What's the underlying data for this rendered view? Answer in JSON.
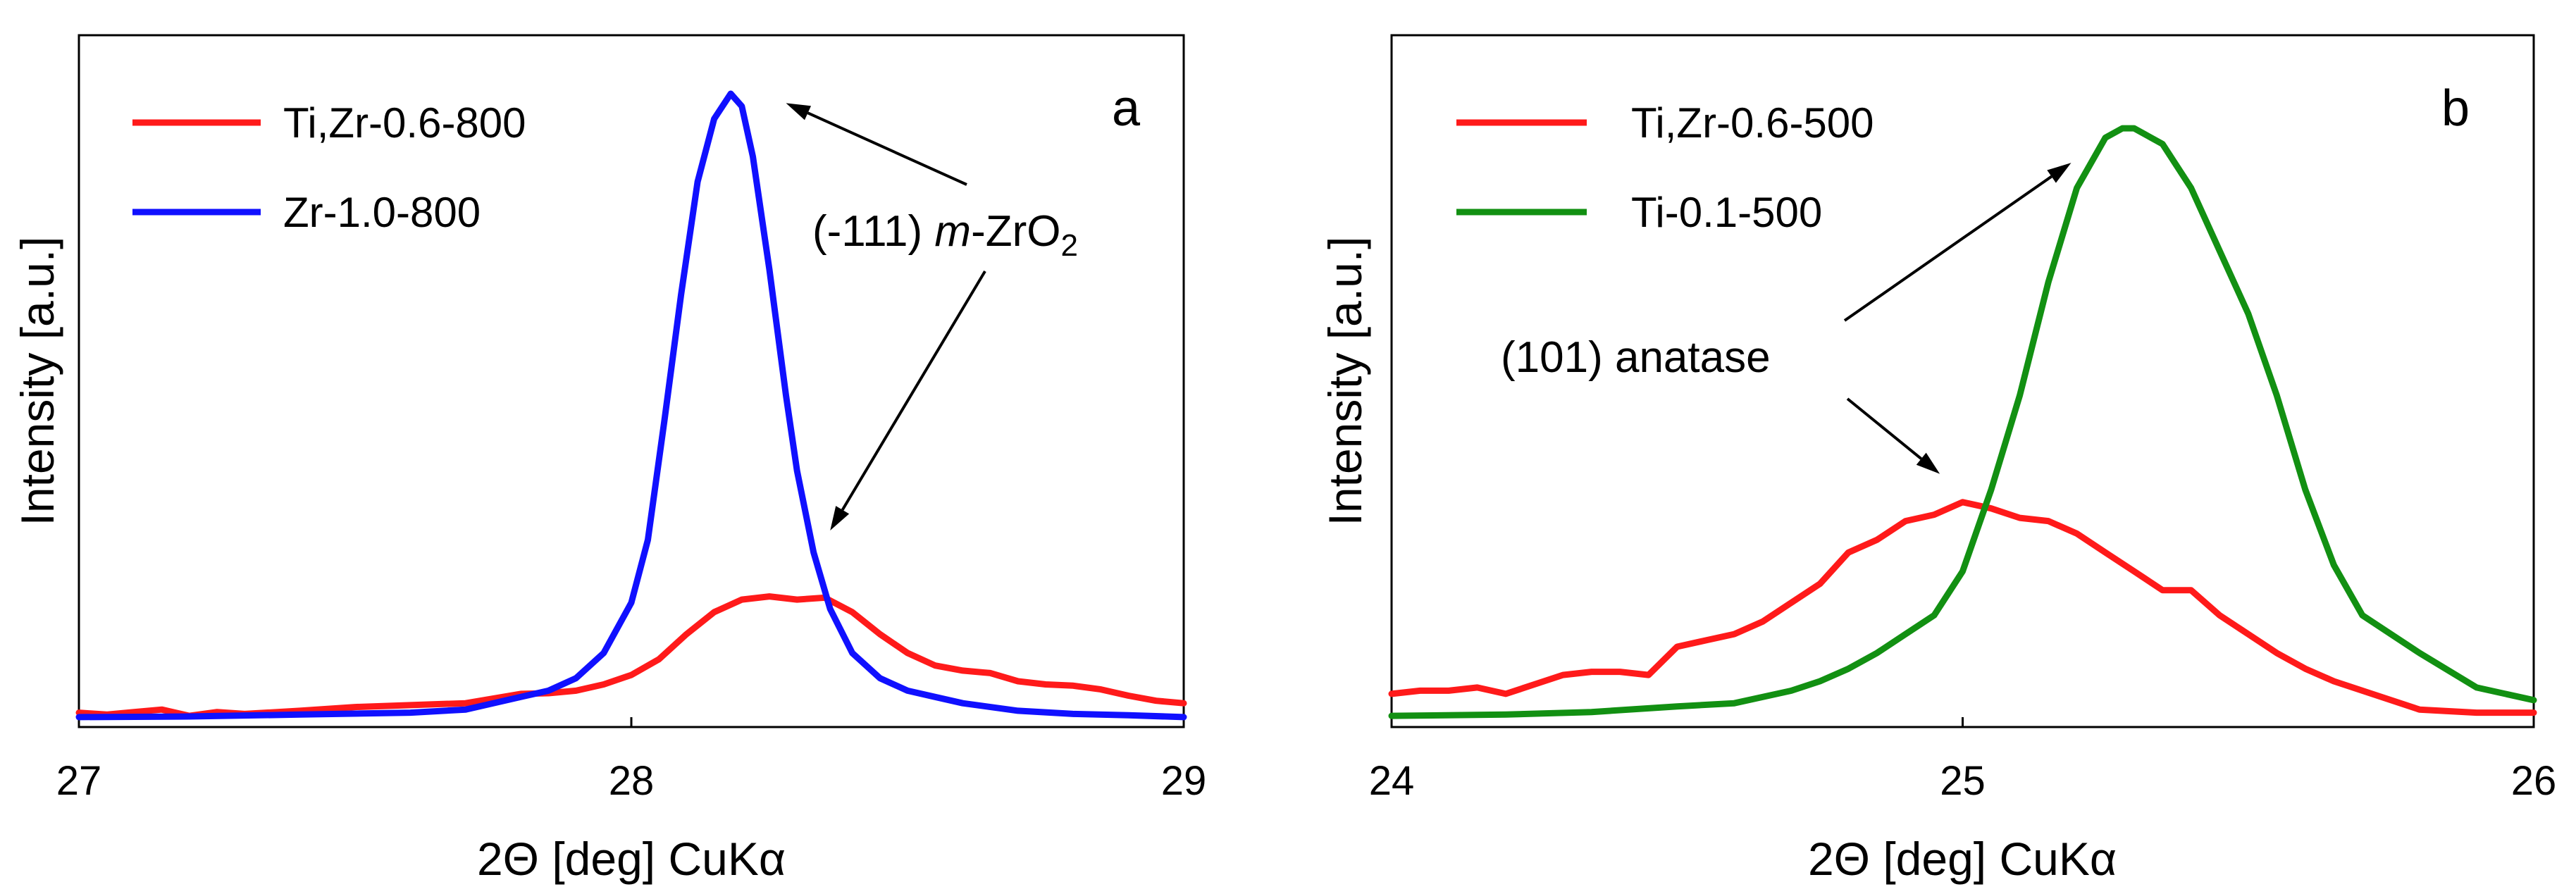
{
  "chart_data": [
    {
      "type": "line",
      "panel_label": "a",
      "xlabel": "2Θ [deg] CuKα",
      "ylabel": "Intensity [a.u.]",
      "xlim": [
        27,
        29
      ],
      "ylim": [
        0,
        100
      ],
      "xticks": [
        "27",
        "28",
        "29"
      ],
      "grid": false,
      "legend_position": "top-left",
      "annotation": {
        "text_prefix": "(-111) ",
        "text_italic": "m",
        "text_mid": "-ZrO",
        "text_sub": "2",
        "targets_x": [
          28.28,
          28.36
        ],
        "targets_y": [
          98.5,
          30.5
        ]
      },
      "series": [
        {
          "name": "Ti,Zr-0.6-800",
          "color": "#ff1a1a",
          "x": [
            27.0,
            27.05,
            27.1,
            27.15,
            27.2,
            27.25,
            27.3,
            27.4,
            27.5,
            27.6,
            27.7,
            27.8,
            27.85,
            27.9,
            27.95,
            28.0,
            28.05,
            28.1,
            28.15,
            28.2,
            28.25,
            28.3,
            28.35,
            28.4,
            28.45,
            28.5,
            28.55,
            28.6,
            28.65,
            28.7,
            28.75,
            28.8,
            28.85,
            28.9,
            28.95,
            29.0
          ],
          "y": [
            1.5,
            1.2,
            1.6,
            2.0,
            1.0,
            1.6,
            1.3,
            1.8,
            2.4,
            2.7,
            3.0,
            4.5,
            4.6,
            5.0,
            6.0,
            7.5,
            10.0,
            14.0,
            17.5,
            19.5,
            20.0,
            19.5,
            19.8,
            17.5,
            14.0,
            11.0,
            9.0,
            8.2,
            7.8,
            6.5,
            6.0,
            5.8,
            5.2,
            4.2,
            3.4,
            3.0
          ]
        },
        {
          "name": "Zr-1.0-800",
          "color": "#1010ff",
          "x": [
            27.0,
            27.2,
            27.4,
            27.6,
            27.7,
            27.8,
            27.85,
            27.9,
            27.95,
            28.0,
            28.03,
            28.06,
            28.09,
            28.12,
            28.15,
            28.18,
            28.2,
            28.22,
            28.25,
            28.28,
            28.3,
            28.33,
            28.36,
            28.4,
            28.45,
            28.5,
            28.55,
            28.6,
            28.7,
            28.8,
            28.9,
            29.0
          ],
          "y": [
            0.8,
            0.9,
            1.2,
            1.5,
            2.0,
            4.0,
            5.0,
            7.0,
            11.0,
            19.0,
            29.0,
            48.0,
            68.0,
            86.0,
            96.0,
            100.0,
            98.0,
            90.0,
            72.0,
            52.0,
            40.0,
            27.0,
            18.0,
            11.0,
            7.0,
            5.0,
            4.0,
            3.0,
            1.8,
            1.3,
            1.1,
            0.8
          ]
        }
      ]
    },
    {
      "type": "line",
      "panel_label": "b",
      "xlabel": "2Θ [deg] CuKα",
      "ylabel": "Intensity [a.u.]",
      "xlim": [
        24,
        26
      ],
      "ylim": [
        0,
        100
      ],
      "xticks": [
        "24",
        "25",
        "26"
      ],
      "grid": false,
      "legend_position": "top-left",
      "annotation": {
        "text": "(101) anatase",
        "targets_x": [
          25.19,
          24.96
        ],
        "targets_y": [
          89.0,
          39.5
        ]
      },
      "series": [
        {
          "name": "Ti,Zr-0.6-500",
          "color": "#ff1a1a",
          "x": [
            24.0,
            24.05,
            24.1,
            24.15,
            24.2,
            24.25,
            24.3,
            24.35,
            24.4,
            24.45,
            24.5,
            24.55,
            24.6,
            24.65,
            24.7,
            24.75,
            24.8,
            24.85,
            24.9,
            24.95,
            25.0,
            25.05,
            25.1,
            25.15,
            25.2,
            25.25,
            25.3,
            25.35,
            25.4,
            25.45,
            25.5,
            25.55,
            25.6,
            25.65,
            25.7,
            25.8,
            25.9,
            26.0
          ],
          "y": [
            4.5,
            5.0,
            5.0,
            5.5,
            4.5,
            6.0,
            7.5,
            8.0,
            8.0,
            7.5,
            12.0,
            13.0,
            14.0,
            16.0,
            19.0,
            22.0,
            27.0,
            29.0,
            32.0,
            33.0,
            35.0,
            34.0,
            32.5,
            32.0,
            30.0,
            27.0,
            24.0,
            21.0,
            21.0,
            17.0,
            14.0,
            11.0,
            8.5,
            6.5,
            5.0,
            2.0,
            1.5,
            1.5
          ]
        },
        {
          "name": "Ti-0.1-500",
          "color": "#129012",
          "x": [
            24.0,
            24.2,
            24.35,
            24.5,
            24.6,
            24.7,
            24.75,
            24.8,
            24.85,
            24.9,
            24.95,
            25.0,
            25.05,
            25.1,
            25.15,
            25.2,
            25.25,
            25.28,
            25.3,
            25.35,
            25.4,
            25.45,
            25.5,
            25.55,
            25.6,
            25.65,
            25.7,
            25.8,
            25.9,
            26.0
          ],
          "y": [
            1.0,
            1.2,
            1.6,
            2.5,
            3.0,
            5.0,
            6.5,
            8.5,
            11.0,
            14.0,
            17.0,
            24.0,
            37.0,
            52.0,
            70.0,
            85.0,
            93.0,
            94.5,
            94.5,
            92.0,
            85.0,
            75.0,
            65.0,
            52.0,
            37.0,
            25.0,
            17.0,
            11.0,
            5.5,
            3.5
          ]
        }
      ]
    }
  ]
}
